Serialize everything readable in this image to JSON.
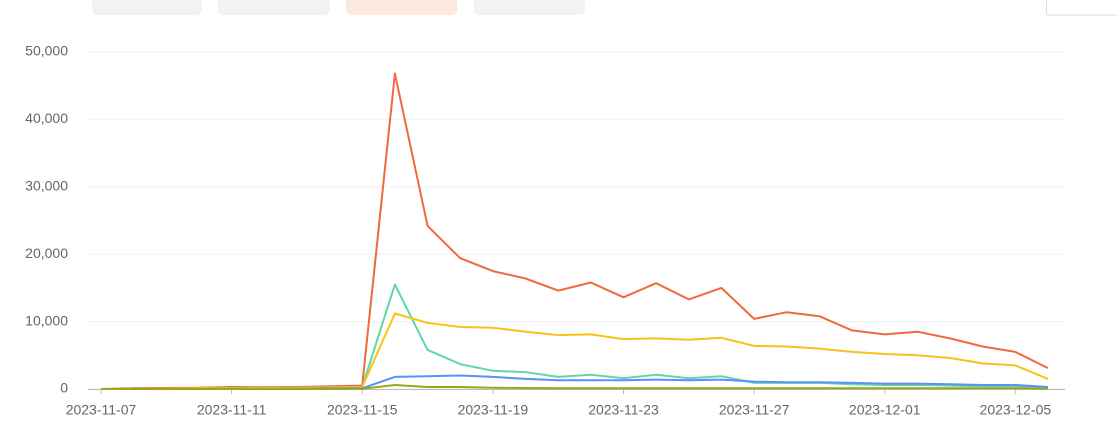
{
  "chart_data": {
    "type": "line",
    "categories": [
      "2023-11-07",
      null,
      null,
      null,
      "2023-11-11",
      null,
      null,
      null,
      "2023-11-15",
      null,
      null,
      null,
      "2023-11-19",
      null,
      null,
      null,
      "2023-11-23",
      null,
      null,
      null,
      "2023-11-27",
      null,
      null,
      null,
      "2023-12-01",
      null,
      null,
      null,
      "2023-12-05",
      null
    ],
    "series": [
      {
        "color": "#f0693a",
        "values": [
          0,
          100,
          150,
          200,
          300,
          250,
          300,
          400,
          500,
          46800,
          24200,
          19400,
          17500,
          16400,
          14600,
          15800,
          13600,
          15700,
          13300,
          15000,
          10400,
          11400,
          10800,
          8700,
          8100,
          8500,
          7500,
          6300,
          5500,
          3100
        ]
      },
      {
        "color": "#5fd8a6",
        "values": [
          0,
          0,
          0,
          0,
          100,
          100,
          100,
          200,
          300,
          15500,
          5800,
          3700,
          2700,
          2500,
          1800,
          2100,
          1600,
          2100,
          1600,
          1900,
          900,
          900,
          900,
          700,
          600,
          600,
          500,
          400,
          400,
          200
        ]
      },
      {
        "color": "#f9c21a",
        "values": [
          0,
          0,
          50,
          100,
          150,
          150,
          200,
          250,
          300,
          11200,
          9800,
          9200,
          9100,
          8500,
          8000,
          8100,
          7400,
          7500,
          7300,
          7600,
          6400,
          6300,
          6000,
          5500,
          5200,
          5000,
          4600,
          3800,
          3500,
          1500
        ]
      },
      {
        "color": "#5b8ff9",
        "values": [
          0,
          0,
          0,
          0,
          50,
          50,
          50,
          100,
          100,
          1800,
          1900,
          2000,
          1800,
          1500,
          1300,
          1300,
          1300,
          1400,
          1300,
          1400,
          1100,
          1000,
          1000,
          900,
          800,
          800,
          700,
          600,
          600,
          300
        ]
      },
      {
        "color": "#9aa818",
        "values": [
          0,
          0,
          0,
          0,
          0,
          0,
          0,
          0,
          50,
          600,
          300,
          300,
          200,
          150,
          100,
          100,
          100,
          100,
          100,
          100,
          100,
          100,
          100,
          100,
          100,
          100,
          100,
          100,
          100,
          50
        ]
      }
    ],
    "ylim": [
      0,
      50000
    ],
    "yticks": [
      0,
      {
        "value": 10000,
        "label": "10,000"
      },
      {
        "value": 20000,
        "label": "20,000"
      },
      {
        "value": 30000,
        "label": "30,000"
      },
      {
        "value": 40000,
        "label": "40,000"
      },
      {
        "value": 50000,
        "label": "50,000"
      }
    ],
    "grid": true
  }
}
